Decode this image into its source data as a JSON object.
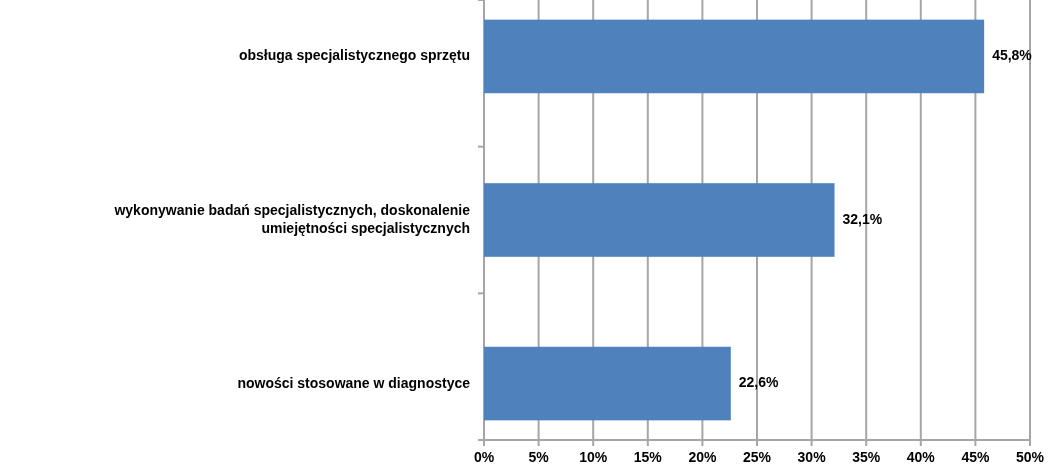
{
  "chart_data": {
    "type": "bar",
    "orientation": "horizontal",
    "categories": [
      "obsługa specjalistycznego sprzętu",
      "wykonywanie badań specjalistycznych, doskonalenie\numiejętności specjalistycznych",
      "nowości stosowane w diagnostyce"
    ],
    "values": [
      45.8,
      32.1,
      22.6
    ],
    "value_labels": [
      "45,8%",
      "32,1%",
      "22,6%"
    ],
    "color": "#4f81bd",
    "xlim": [
      0,
      50
    ],
    "xticks": [
      {
        "value": 0,
        "label": "0%"
      },
      {
        "value": 5,
        "label": "5%"
      },
      {
        "value": 10,
        "label": "10%"
      },
      {
        "value": 15,
        "label": "15%"
      },
      {
        "value": 20,
        "label": "20%"
      },
      {
        "value": 25,
        "label": "25%"
      },
      {
        "value": 30,
        "label": "30%"
      },
      {
        "value": 35,
        "label": "35%"
      },
      {
        "value": 40,
        "label": "40%"
      },
      {
        "value": 45,
        "label": "45%"
      },
      {
        "value": 50,
        "label": "50%"
      }
    ],
    "grid": "x"
  }
}
